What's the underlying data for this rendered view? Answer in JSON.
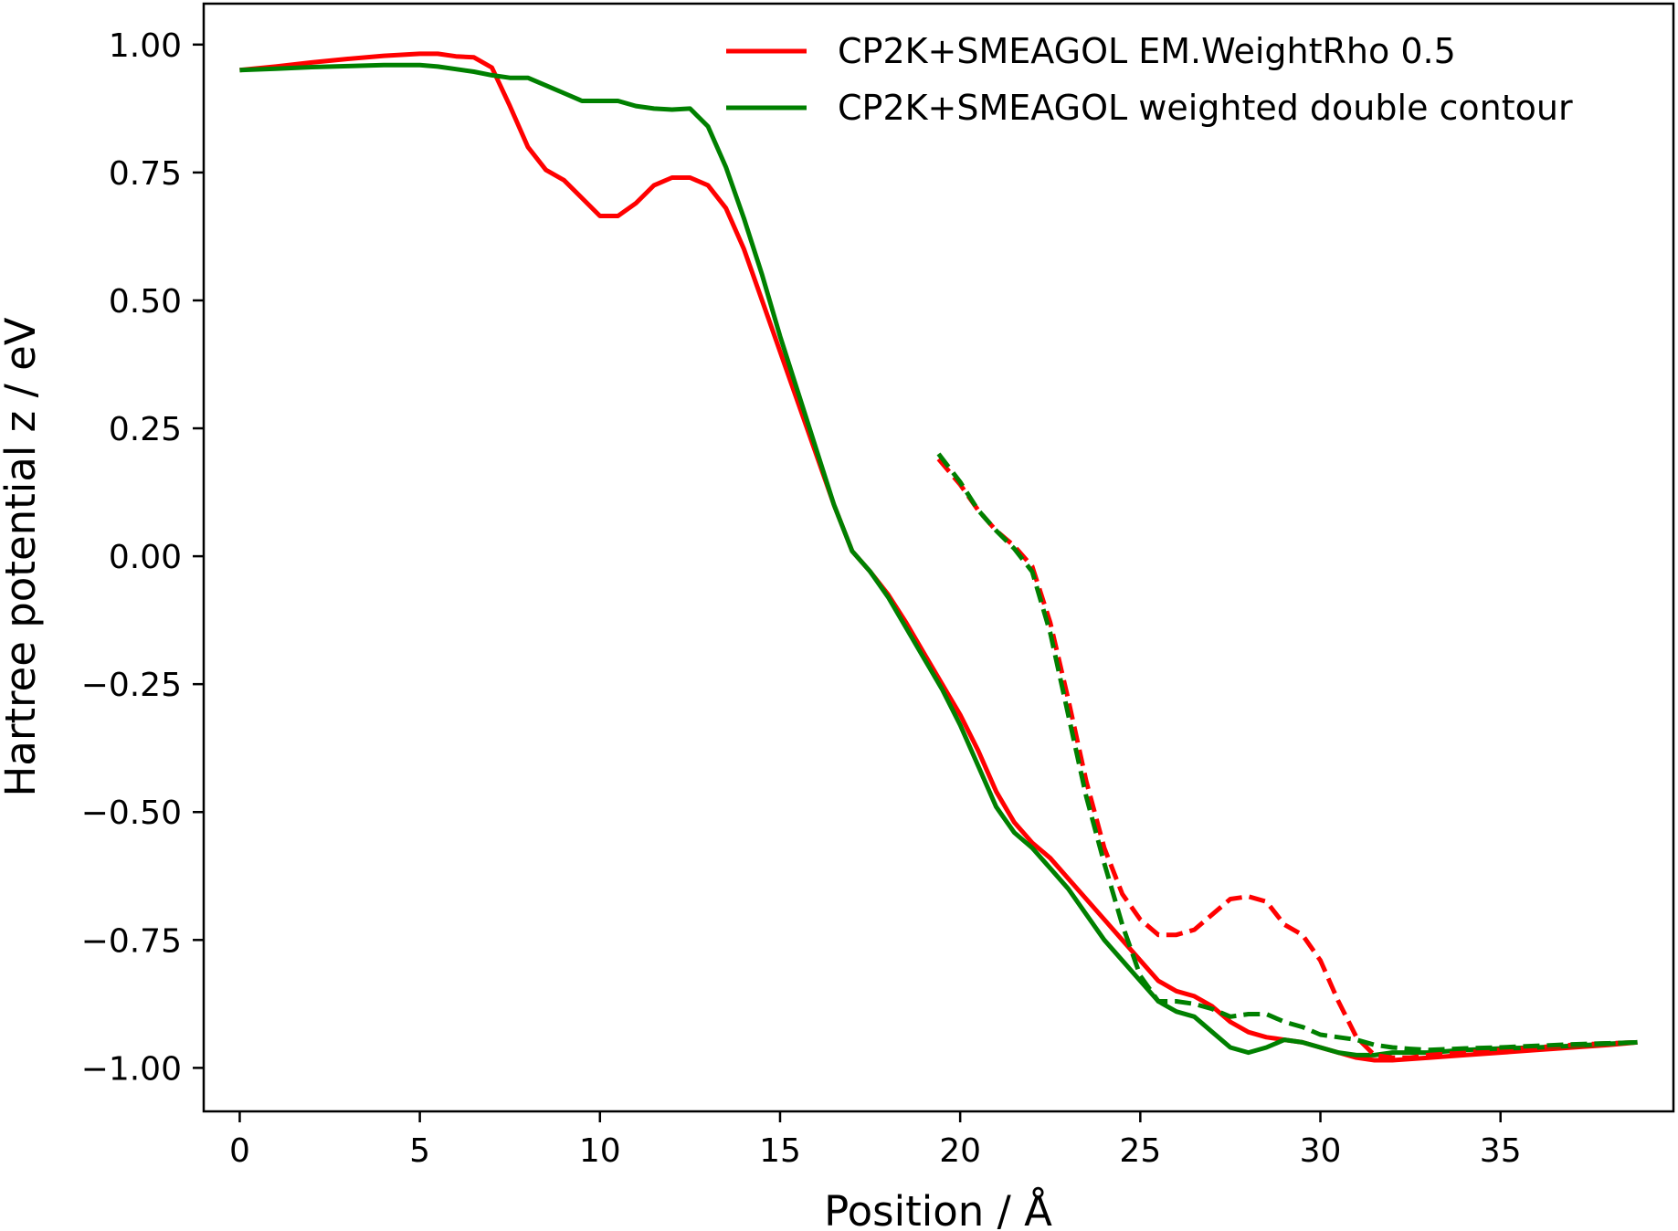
{
  "chart_data": {
    "type": "line",
    "title": "",
    "xlabel": "Position / Å",
    "ylabel": "Hartree potential z / eV",
    "xlim": [
      -1.0,
      39.8
    ],
    "ylim": [
      -1.085,
      1.08
    ],
    "xticks": [
      0,
      5,
      10,
      15,
      20,
      25,
      30,
      35
    ],
    "xtick_labels": [
      "0",
      "5",
      "10",
      "15",
      "20",
      "25",
      "30",
      "35"
    ],
    "yticks": [
      1.0,
      0.75,
      0.5,
      0.25,
      0.0,
      -0.25,
      -0.5,
      -0.75,
      -1.0
    ],
    "ytick_labels": [
      "1.00",
      "0.75",
      "0.50",
      "0.25",
      "0.00",
      "−0.25",
      "−0.50",
      "−0.75",
      "−1.00"
    ],
    "grid": false,
    "legend_position": "top-right",
    "series": [
      {
        "name": "CP2K+SMEAGOL EM.WeightRho 0.5",
        "color": "#ff0000",
        "style": "solid",
        "in_legend": true,
        "x": [
          0,
          1,
          2,
          3,
          4,
          5,
          5.5,
          6,
          6.5,
          7,
          7.5,
          8,
          8.5,
          9,
          9.5,
          10,
          10.5,
          11,
          11.5,
          12,
          12.5,
          13,
          13.5,
          14,
          14.5,
          15,
          15.5,
          16,
          16.5,
          17,
          17.5,
          18,
          18.5,
          19,
          19.5,
          20,
          20.5,
          21,
          21.5,
          22,
          22.5,
          23,
          23.5,
          24,
          24.5,
          25,
          25.5,
          26,
          26.5,
          27,
          27.5,
          28,
          28.5,
          29,
          29.5,
          30,
          30.5,
          31,
          31.5,
          32,
          33,
          34,
          35,
          36,
          37,
          38,
          38.8
        ],
        "y": [
          0.95,
          0.957,
          0.965,
          0.972,
          0.978,
          0.982,
          0.982,
          0.977,
          0.975,
          0.955,
          0.88,
          0.8,
          0.755,
          0.735,
          0.7,
          0.665,
          0.665,
          0.69,
          0.725,
          0.74,
          0.74,
          0.725,
          0.68,
          0.6,
          0.5,
          0.4,
          0.3,
          0.2,
          0.1,
          0.01,
          -0.03,
          -0.075,
          -0.13,
          -0.19,
          -0.25,
          -0.31,
          -0.38,
          -0.46,
          -0.52,
          -0.56,
          -0.59,
          -0.63,
          -0.67,
          -0.71,
          -0.75,
          -0.79,
          -0.83,
          -0.85,
          -0.86,
          -0.88,
          -0.91,
          -0.93,
          -0.94,
          -0.945,
          -0.95,
          -0.96,
          -0.97,
          -0.98,
          -0.985,
          -0.985,
          -0.98,
          -0.975,
          -0.97,
          -0.965,
          -0.96,
          -0.955,
          -0.95
        ]
      },
      {
        "name": "CP2K+SMEAGOL weighted double contour",
        "color": "#008000",
        "style": "solid",
        "in_legend": true,
        "x": [
          0,
          1,
          2,
          3,
          4,
          5,
          5.5,
          6,
          6.5,
          7,
          7.5,
          8,
          8.5,
          9,
          9.5,
          10,
          10.5,
          11,
          11.5,
          12,
          12.5,
          13,
          13.5,
          14,
          14.5,
          15,
          15.5,
          16,
          16.5,
          17,
          17.5,
          18,
          18.5,
          19,
          19.5,
          20,
          20.5,
          21,
          21.5,
          22,
          22.5,
          23,
          23.5,
          24,
          24.5,
          25,
          25.5,
          26,
          26.5,
          27,
          27.5,
          28,
          28.5,
          29,
          29.5,
          30,
          30.5,
          31,
          31.5,
          32,
          33,
          34,
          35,
          36,
          37,
          38,
          38.8
        ],
        "y": [
          0.95,
          0.953,
          0.956,
          0.958,
          0.96,
          0.96,
          0.957,
          0.952,
          0.947,
          0.94,
          0.935,
          0.935,
          0.92,
          0.905,
          0.89,
          0.89,
          0.89,
          0.88,
          0.875,
          0.873,
          0.875,
          0.84,
          0.76,
          0.66,
          0.55,
          0.43,
          0.32,
          0.21,
          0.1,
          0.01,
          -0.03,
          -0.08,
          -0.14,
          -0.2,
          -0.26,
          -0.33,
          -0.41,
          -0.49,
          -0.54,
          -0.57,
          -0.61,
          -0.65,
          -0.7,
          -0.75,
          -0.79,
          -0.83,
          -0.87,
          -0.89,
          -0.9,
          -0.93,
          -0.96,
          -0.97,
          -0.96,
          -0.945,
          -0.95,
          -0.96,
          -0.97,
          -0.975,
          -0.975,
          -0.97,
          -0.97,
          -0.965,
          -0.962,
          -0.96,
          -0.957,
          -0.953,
          -0.95
        ]
      },
      {
        "name": "",
        "color": "#ff0000",
        "style": "dashed",
        "in_legend": false,
        "x": [
          19.4,
          20,
          20.5,
          21,
          21.5,
          22,
          22.5,
          23,
          23.5,
          24,
          24.5,
          25,
          25.5,
          26,
          26.5,
          27,
          27.5,
          28,
          28.5,
          29,
          29.5,
          30,
          30.5,
          31,
          31.5,
          32,
          32.5,
          33,
          34,
          35,
          36,
          37,
          38,
          38.8
        ],
        "y": [
          0.19,
          0.14,
          0.09,
          0.05,
          0.02,
          -0.02,
          -0.13,
          -0.28,
          -0.44,
          -0.57,
          -0.66,
          -0.71,
          -0.74,
          -0.74,
          -0.73,
          -0.7,
          -0.67,
          -0.665,
          -0.675,
          -0.72,
          -0.74,
          -0.79,
          -0.87,
          -0.94,
          -0.975,
          -0.98,
          -0.98,
          -0.975,
          -0.97,
          -0.965,
          -0.96,
          -0.955,
          -0.952,
          -0.95
        ]
      },
      {
        "name": "",
        "color": "#008000",
        "style": "dashed",
        "in_legend": false,
        "x": [
          19.4,
          20,
          20.5,
          21,
          21.5,
          22,
          22.5,
          23,
          23.5,
          24,
          24.5,
          25,
          25.5,
          26,
          26.5,
          27,
          27.5,
          28,
          28.5,
          29,
          29.5,
          30,
          30.5,
          31,
          31.5,
          32,
          32.5,
          33,
          34,
          35,
          36,
          37,
          38,
          38.8
        ],
        "y": [
          0.2,
          0.145,
          0.09,
          0.05,
          0.015,
          -0.03,
          -0.15,
          -0.31,
          -0.47,
          -0.6,
          -0.72,
          -0.82,
          -0.87,
          -0.87,
          -0.875,
          -0.885,
          -0.9,
          -0.895,
          -0.895,
          -0.91,
          -0.92,
          -0.935,
          -0.94,
          -0.945,
          -0.955,
          -0.96,
          -0.963,
          -0.965,
          -0.962,
          -0.96,
          -0.957,
          -0.954,
          -0.952,
          -0.95
        ]
      }
    ]
  }
}
